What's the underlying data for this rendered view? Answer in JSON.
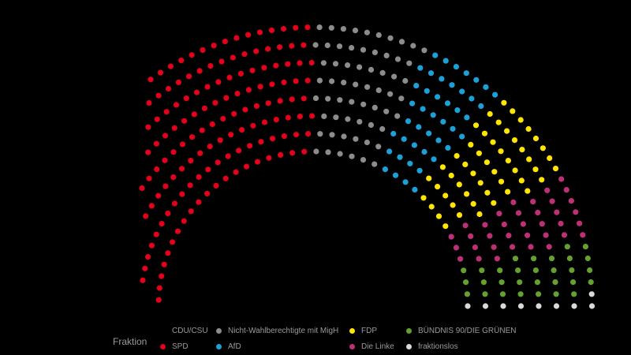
{
  "chart_data": {
    "type": "parliament",
    "legend_title": "Fraktion",
    "series": [
      {
        "name": "CDU/CSU",
        "color": "#000000"
      },
      {
        "name": "SPD",
        "color": "#e3001b"
      },
      {
        "name": "Nicht-Wahlberechtigte mit MigH",
        "color": "#8c8c8c"
      },
      {
        "name": "AfD",
        "color": "#1ba1d8"
      },
      {
        "name": "FDP",
        "color": "#ffe600"
      },
      {
        "name": "Die Linke",
        "color": "#be3075"
      },
      {
        "name": "BÜNDNIS 90/DIE GRÜNEN",
        "color": "#64a12d"
      },
      {
        "name": "fraktionslos",
        "color": "#d9d9d9"
      }
    ],
    "legend_placement": "bottom",
    "grid": false
  }
}
